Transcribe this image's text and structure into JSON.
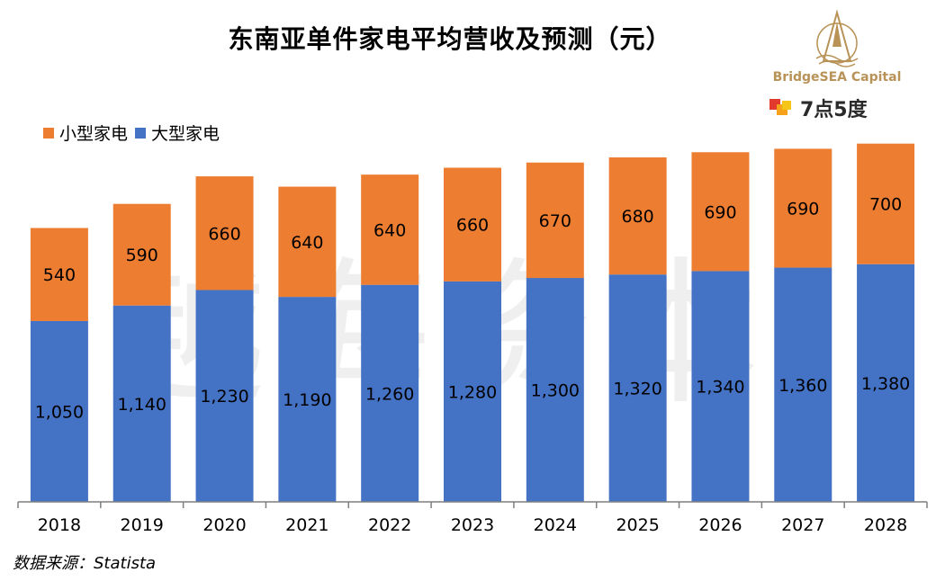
{
  "title": "东南亚单件家电平均营收及预测（元）",
  "source": "数据来源：Statista",
  "watermark": "越海资本",
  "brand": {
    "name": "BridgeSEA Capital",
    "secondary": "7点5度",
    "logo_icon": "compass-star-icon"
  },
  "colors": {
    "small": "#ED7D31",
    "large": "#4472C4",
    "axis": "#7f7f7f"
  },
  "chart_data": {
    "type": "bar",
    "stacked": true,
    "title": "东南亚单件家电平均营收及预测（元）",
    "categories": [
      "2018",
      "2019",
      "2020",
      "2021",
      "2022",
      "2023",
      "2024",
      "2025",
      "2026",
      "2027",
      "2028"
    ],
    "series": [
      {
        "name": "大型家电",
        "values": [
          1050,
          1140,
          1230,
          1190,
          1260,
          1280,
          1300,
          1320,
          1340,
          1360,
          1380
        ],
        "labels": [
          "1,050",
          "1,140",
          "1,230",
          "1,190",
          "1,260",
          "1,280",
          "1,300",
          "1,320",
          "1,340",
          "1,360",
          "1,380"
        ]
      },
      {
        "name": "小型家电",
        "values": [
          540,
          590,
          660,
          640,
          640,
          660,
          670,
          680,
          690,
          690,
          700
        ],
        "labels": [
          "540",
          "590",
          "660",
          "640",
          "640",
          "660",
          "670",
          "680",
          "690",
          "690",
          "700"
        ]
      }
    ],
    "legend": [
      "小型家电",
      "大型家电"
    ],
    "legend_position": "top-left",
    "ylim": [
      0,
      2100
    ],
    "grid": false
  }
}
